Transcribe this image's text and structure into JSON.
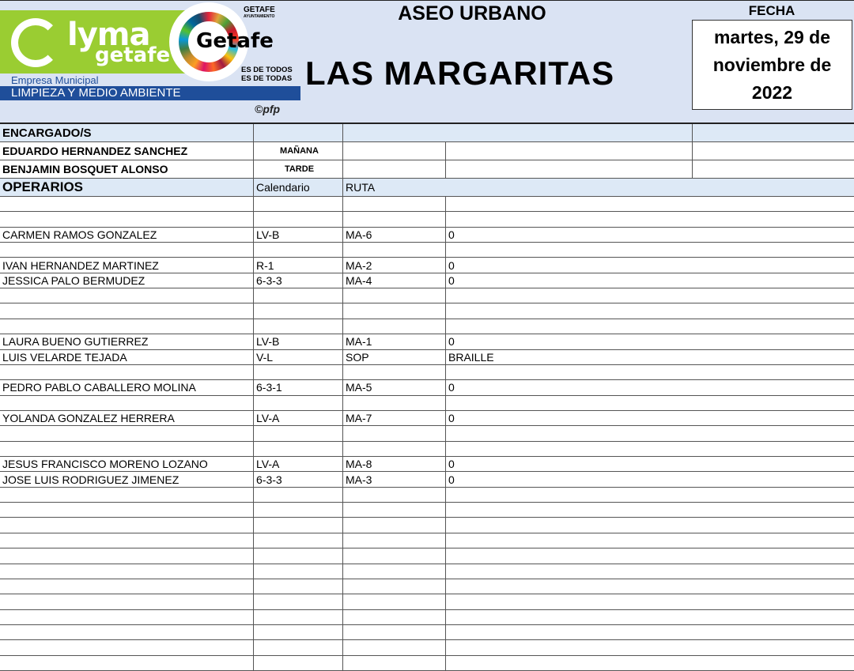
{
  "header": {
    "logo_lyma": "lyma",
    "logo_getafe": "getafe",
    "empresa": "Empresa Municipal",
    "banner": "LIMPIEZA Y MEDIO AMBIENTE",
    "getafe_logo": "Getafe",
    "getafe_slogan1": "ES DE TODOS",
    "getafe_slogan2": "ES DE TODAS",
    "ayto": "GETAFE",
    "ayto_sub": "AYUNTAMIENTO",
    "copyright": "©pfp",
    "service": "ASEO URBANO",
    "zone": "LAS MARGARITAS",
    "fecha_label": "FECHA",
    "fecha_line1": "martes, 29 de",
    "fecha_line2": "noviembre de",
    "fecha_line3": "2022"
  },
  "encargados": {
    "label": "ENCARGADO/S",
    "rows": [
      {
        "name": "EDUARDO HERNANDEZ SANCHEZ",
        "shift": "MAÑANA"
      },
      {
        "name": "BENJAMIN BOSQUET ALONSO",
        "shift": "TARDE"
      }
    ]
  },
  "operarios": {
    "label": "OPERARIOS",
    "col_calendario": "Calendario",
    "col_ruta": "RUTA",
    "rows": [
      [
        "",
        "",
        "",
        ""
      ],
      [
        "",
        "",
        "",
        ""
      ],
      [
        "CARMEN RAMOS GONZALEZ",
        "LV-B",
        "MA-6",
        "0"
      ],
      [
        "",
        "",
        "",
        ""
      ],
      [
        "IVAN HERNANDEZ MARTINEZ",
        "R-1",
        "MA-2",
        "0"
      ],
      [
        "JESSICA PALO BERMUDEZ",
        "6-3-3",
        "MA-4",
        "0"
      ],
      [
        "",
        "",
        "",
        ""
      ],
      [
        "",
        "",
        "",
        ""
      ],
      [
        "",
        "",
        "",
        ""
      ],
      [
        "LAURA BUENO GUTIERREZ",
        "LV-B",
        "MA-1",
        "0"
      ],
      [
        "LUIS VELARDE TEJADA",
        "V-L",
        "SOP",
        "BRAILLE"
      ],
      [
        "",
        "",
        "",
        ""
      ],
      [
        "PEDRO PABLO CABALLERO MOLINA",
        "6-3-1",
        "MA-5",
        "0"
      ],
      [
        "",
        "",
        "",
        ""
      ],
      [
        "YOLANDA GONZALEZ HERRERA",
        "LV-A",
        "MA-7",
        "0"
      ],
      [
        "",
        "",
        "",
        ""
      ],
      [
        "",
        "",
        "",
        ""
      ],
      [
        "JESUS FRANCISCO MORENO LOZANO",
        "LV-A",
        "MA-8",
        "0"
      ],
      [
        "JOSE LUIS RODRIGUEZ JIMENEZ",
        "6-3-3",
        "MA-3",
        "0"
      ],
      [
        "",
        "",
        "",
        ""
      ],
      [
        "",
        "",
        "",
        ""
      ],
      [
        "",
        "",
        "",
        ""
      ],
      [
        "",
        "",
        "",
        ""
      ],
      [
        "",
        "",
        "",
        ""
      ],
      [
        "",
        "",
        "",
        ""
      ],
      [
        "",
        "",
        "",
        ""
      ],
      [
        "",
        "",
        "",
        ""
      ],
      [
        "",
        "",
        "",
        ""
      ],
      [
        "",
        "",
        "",
        ""
      ],
      [
        "",
        "",
        "",
        ""
      ],
      [
        "",
        "",
        "",
        ""
      ]
    ]
  },
  "colors": {
    "header_bg": "#dae3f3",
    "banner": "#1f4e9a",
    "lyma_green": "#9acd32",
    "row_blue": "#dde9f6"
  }
}
